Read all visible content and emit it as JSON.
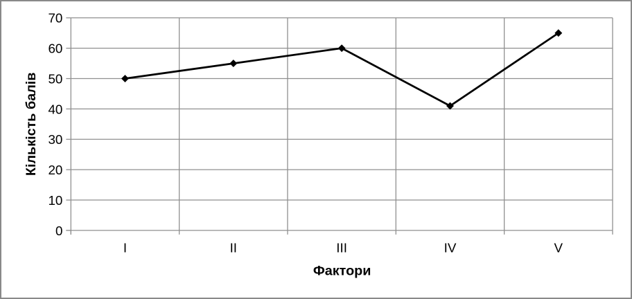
{
  "chart_data": {
    "type": "line",
    "title": "",
    "categories": [
      "I",
      "II",
      "III",
      "IV",
      "V"
    ],
    "values": [
      50,
      55,
      60,
      41,
      65
    ],
    "xlabel": "Фактори",
    "ylabel": "Кількість балів",
    "ylim": [
      0,
      70
    ],
    "ytick_step": 10,
    "grid": true,
    "legend_position": "none",
    "marker": "diamond",
    "colors": {
      "series_line": "#000000",
      "marker_fill": "#000000",
      "gridline": "#8f8f8f",
      "axis_line": "#8f8f8f",
      "tick_text": "#000000",
      "axis_title_text": "#000000",
      "plot_background": "#ffffff",
      "frame_border": "#898989"
    }
  }
}
